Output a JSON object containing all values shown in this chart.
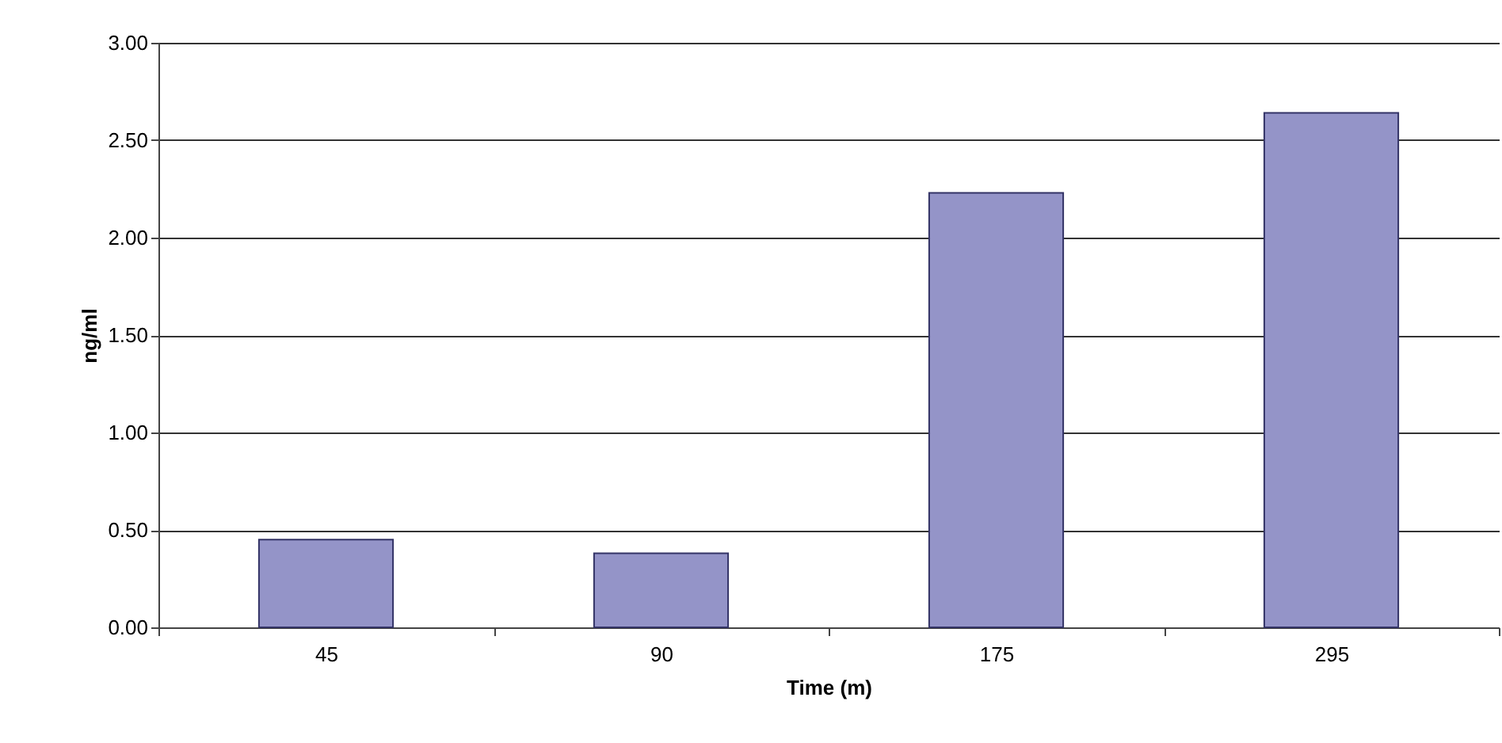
{
  "chart_data": {
    "type": "bar",
    "xlabel": "Time (m)",
    "ylabel": "ng/ml",
    "categories": [
      "45",
      "90",
      "175",
      "295"
    ],
    "values": [
      0.45,
      0.38,
      2.23,
      2.64
    ],
    "color": "#9494c8",
    "ylim": [
      0,
      3
    ],
    "yticks": [
      {
        "value": 0,
        "label": "0.00"
      },
      {
        "value": 0.5,
        "label": "0.50"
      },
      {
        "value": 1,
        "label": "1.00"
      },
      {
        "value": 1.5,
        "label": "1.50"
      },
      {
        "value": 2,
        "label": "2.00"
      },
      {
        "value": 2.5,
        "label": "2.50"
      },
      {
        "value": 3,
        "label": "3.00"
      }
    ],
    "grid": "y"
  }
}
